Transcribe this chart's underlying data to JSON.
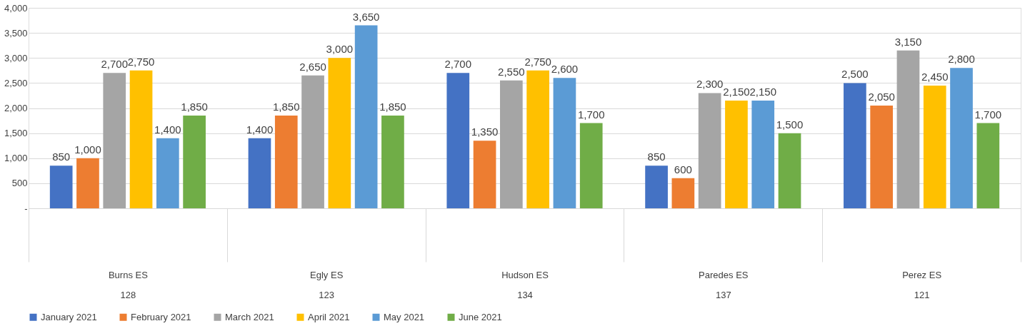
{
  "chart_data": {
    "type": "bar",
    "categories": [
      "Burns ES\n128",
      "Egly ES\n123",
      "Hudson ES\n134",
      "Paredes ES\n137",
      "Perez ES\n121"
    ],
    "series": [
      {
        "name": "January 2021",
        "color": "#4472c4",
        "values": [
          850,
          1400,
          2700,
          850,
          2500
        ],
        "value_labels": [
          "850",
          "1,400",
          "2,700",
          "850",
          "2,500"
        ]
      },
      {
        "name": "February 2021",
        "color": "#ed7d31",
        "values": [
          1000,
          1850,
          1350,
          600,
          2050
        ],
        "value_labels": [
          "1,000",
          "1,850",
          "1,350",
          "600",
          "2,050"
        ]
      },
      {
        "name": "March 2021",
        "color": "#a5a5a5",
        "values": [
          2700,
          2650,
          2550,
          2300,
          3150
        ],
        "value_labels": [
          "2,700",
          "2,650",
          "2,550",
          "2,300",
          "3,150"
        ]
      },
      {
        "name": "April 2021",
        "color": "#ffc000",
        "values": [
          2750,
          3000,
          2750,
          2150,
          2450
        ],
        "value_labels": [
          "2,750",
          "3,000",
          "2,750",
          "2,150",
          "2,450"
        ]
      },
      {
        "name": "May 2021",
        "color": "#5b9bd5",
        "values": [
          1400,
          3650,
          2600,
          2150,
          2800
        ],
        "value_labels": [
          "1,400",
          "3,650",
          "2,600",
          "2,150",
          "2,800"
        ]
      },
      {
        "name": "June 2021",
        "color": "#70ad47",
        "values": [
          1850,
          1850,
          1700,
          1500,
          1700
        ],
        "value_labels": [
          "1,850",
          "1,850",
          "1,700",
          "1,500",
          "1,700"
        ]
      }
    ],
    "ylim": [
      0,
      4000
    ],
    "yticks": [
      {
        "value": 0,
        "label": "-"
      },
      {
        "value": 500,
        "label": "500"
      },
      {
        "value": 1000,
        "label": "1,000"
      },
      {
        "value": 1500,
        "label": "1,500"
      },
      {
        "value": 2000,
        "label": "2,000"
      },
      {
        "value": 2500,
        "label": "2,500"
      },
      {
        "value": 3000,
        "label": "3,000"
      },
      {
        "value": 3500,
        "label": "3,500"
      },
      {
        "value": 4000,
        "label": "4,000"
      }
    ],
    "grid": "y",
    "legend": "bottom"
  }
}
